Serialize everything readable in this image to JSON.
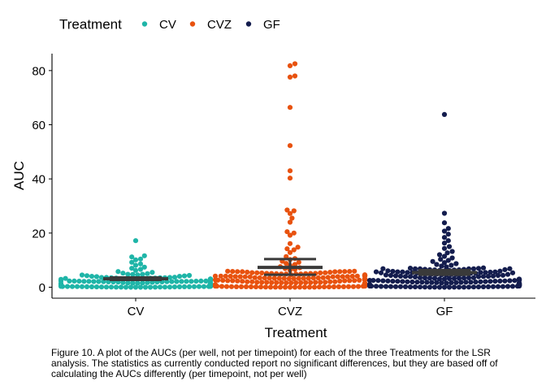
{
  "chart_data": {
    "type": "scatter",
    "subtype": "beeswarm with mean and standard-error bars",
    "xlabel": "Treatment",
    "ylabel": "AUC",
    "categories": [
      "CV",
      "CVZ",
      "GF"
    ],
    "ylim": [
      -4,
      86
    ],
    "yticks": [
      0,
      20,
      40,
      60,
      80
    ],
    "grid": false,
    "legend": {
      "title": "Treatment",
      "position": "top",
      "entries": [
        {
          "name": "CV",
          "color": "#1fb5a8"
        },
        {
          "name": "CVZ",
          "color": "#e8520f"
        },
        {
          "name": "GF",
          "color": "#141d4e"
        }
      ]
    },
    "series": [
      {
        "name": "CV",
        "color": "#1fb5a8",
        "summary": {
          "mean": 3.1,
          "ymin": 2.7,
          "ymax": 3.6
        },
        "outliers": [
          17.2,
          11.6,
          11.2,
          10.4,
          10.1,
          9.2,
          8.6,
          8.1,
          7.4,
          7.0,
          6.6,
          6.2,
          5.8,
          5.5,
          5.2,
          5.0
        ],
        "bulk": {
          "count": 150,
          "min": 0,
          "max": 4.8,
          "skew": 2.1
        }
      },
      {
        "name": "CVZ",
        "color": "#e8520f",
        "summary": {
          "mean": 7.3,
          "ymin": 4.6,
          "ymax": 10.4
        },
        "outliers": [
          82.5,
          81.8,
          78.0,
          77.6,
          66.4,
          52.3,
          43.0,
          40.3,
          28.5,
          28.2,
          27.2,
          25.5,
          24.0,
          20.5,
          20.0,
          19.2,
          16.1,
          14.8,
          14.2,
          13.8,
          12.8,
          11.3,
          10.6,
          10.2,
          9.6,
          9.2,
          8.8,
          8.4,
          8.0,
          7.6,
          7.2,
          6.9,
          6.6,
          6.3
        ],
        "bulk": {
          "count": 185,
          "min": 0,
          "max": 6.0,
          "skew": 1.7
        }
      },
      {
        "name": "GF",
        "color": "#141d4e",
        "summary": {
          "mean": 5.4,
          "ymin": 4.6,
          "ymax": 6.3
        },
        "outliers": [
          63.8,
          27.3,
          23.8,
          21.7,
          20.7,
          19.6,
          18.4,
          17.2,
          16.3,
          15.0,
          14.3,
          13.2,
          12.7,
          12.0,
          11.4,
          10.8,
          10.3,
          9.9,
          9.5,
          9.1,
          8.7,
          8.4,
          8.1,
          7.8,
          7.5
        ],
        "bulk": {
          "count": 175,
          "min": 0,
          "max": 7.2,
          "skew": 1.4
        }
      }
    ]
  },
  "caption": "Figure 10. A plot of the AUCs (per well, not per timepoint) for each of the three Treatments for the LSR analysis. The statistics as currently conducted report no significant differences, but they are based off of calculating the AUCs differently (per timepoint, not per well)"
}
